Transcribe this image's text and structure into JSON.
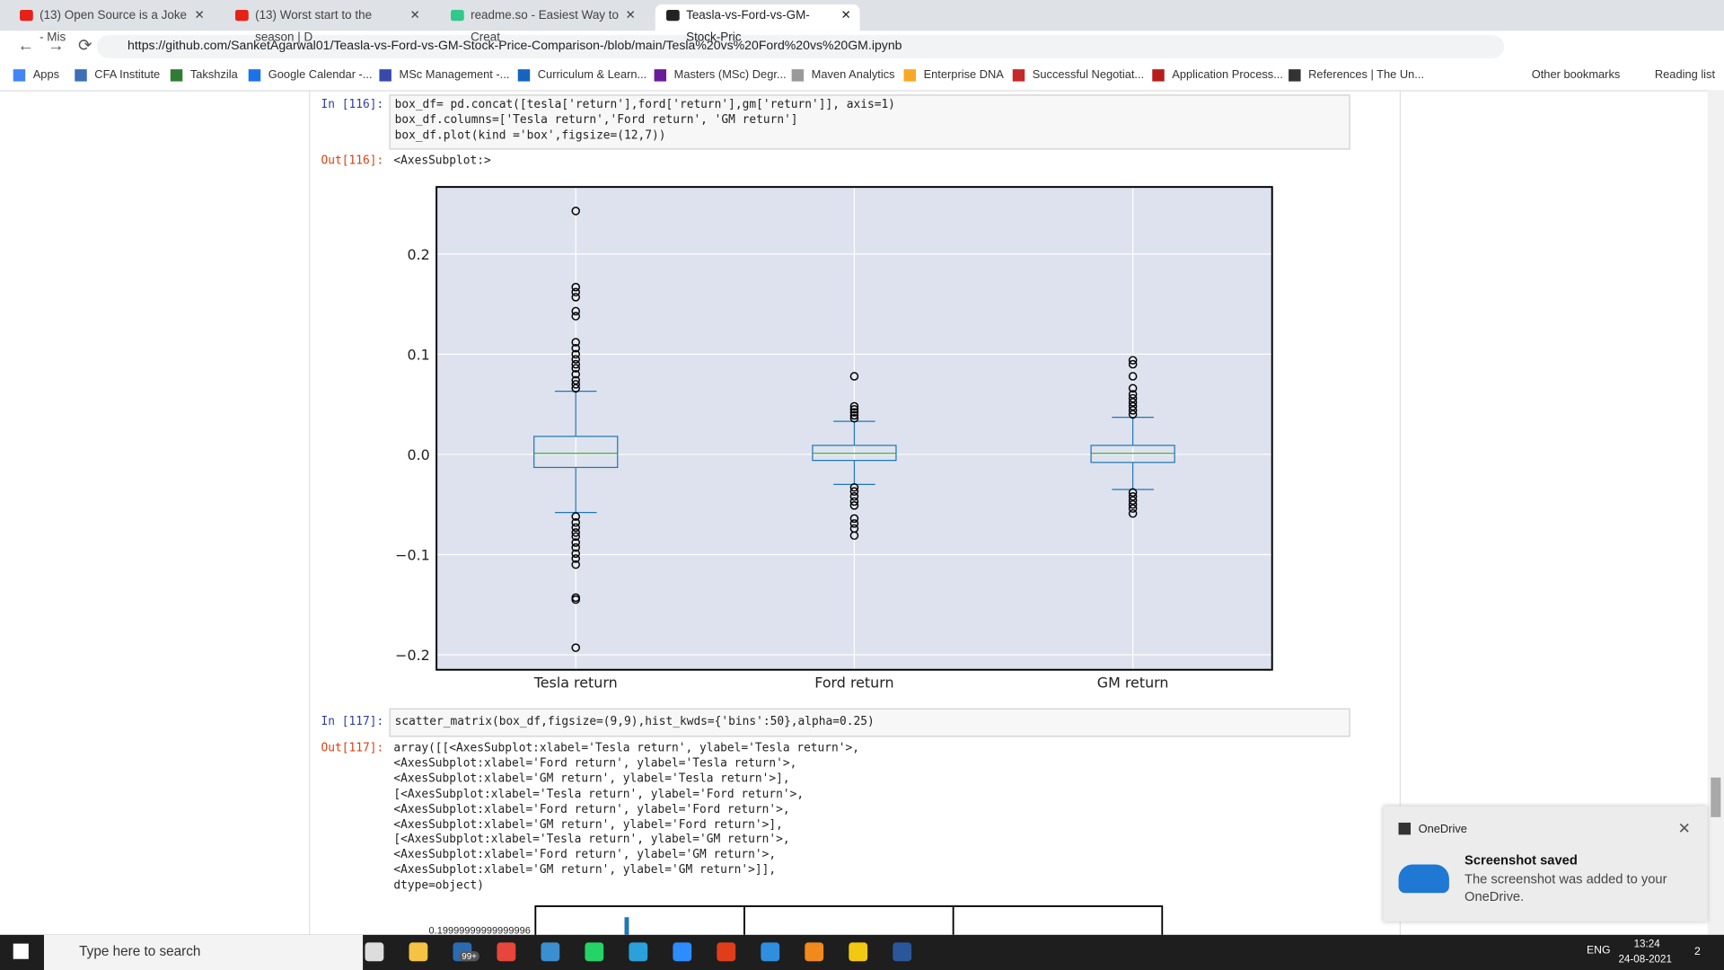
{
  "browser": {
    "tabs": [
      "(13) Open Source is a Joke - Mis",
      "(13) Worst start to the season | D",
      "readme.so - Easiest Way to Creat",
      "Teasla-vs-Ford-vs-GM-Stock-Pric"
    ],
    "url": "https://github.com/SanketAgarwal01/Teasla-vs-Ford-vs-GM-Stock-Price-Comparison-/blob/main/Tesla%20vs%20Ford%20vs%20GM.ipynb",
    "bookmarks": [
      "Apps",
      "CFA Institute",
      "Takshzila",
      "Google Calendar -...",
      "MSc Management -...",
      "Curriculum & Learn...",
      "Masters (MSc) Degr...",
      "Maven Analytics",
      "Enterprise DNA",
      "Successful Negotiat...",
      "Application Process...",
      "References | The Un..."
    ],
    "other_bookmarks": "Other bookmarks",
    "reading_list": "Reading list"
  },
  "notebook": {
    "cells": [
      {
        "prompt": "In [116]:",
        "code": [
          "box_df= pd.concat([tesla['return'],ford['return'],gm['return']], axis=1)",
          "box_df.columns=['Tesla return','Ford return', 'GM return']",
          "box_df.plot(kind ='box',figsize=(12,7))"
        ]
      },
      {
        "prompt": "In [117]:",
        "code": [
          "scatter_matrix(box_df,figsize=(9,9),hist_kwds={'bins':50},alpha=0.25)"
        ]
      }
    ],
    "outputs": [
      {
        "prompt": "Out[116]:",
        "text": [
          "<AxesSubplot:>"
        ]
      },
      {
        "prompt": "Out[117]:",
        "text": [
          "array([[<AxesSubplot:xlabel='Tesla return', ylabel='Tesla return'>,",
          "        <AxesSubplot:xlabel='Ford return', ylabel='Tesla return'>,",
          "        <AxesSubplot:xlabel='GM return', ylabel='Tesla return'>],",
          "       [<AxesSubplot:xlabel='Tesla return', ylabel='Ford return'>,",
          "        <AxesSubplot:xlabel='Ford return', ylabel='Ford return'>,",
          "        <AxesSubplot:xlabel='GM return', ylabel='Ford return'>],",
          "       [<AxesSubplot:xlabel='Tesla return', ylabel='GM return'>,",
          "        <AxesSubplot:xlabel='Ford return', ylabel='GM return'>,",
          "        <AxesSubplot:xlabel='GM return', ylabel='GM return'>]],",
          "      dtype=object)"
        ]
      }
    ],
    "partial_tick": "0.19999999999999996"
  },
  "chart_data": {
    "type": "box",
    "categories": [
      "Tesla return",
      "Ford return",
      "GM return"
    ],
    "boxes": [
      {
        "whislo": -0.058,
        "q1": -0.013,
        "median": 0.001,
        "q3": 0.018,
        "whishi": 0.063,
        "fliers": [
          0.243,
          0.167,
          0.162,
          0.157,
          0.143,
          0.138,
          0.112,
          0.106,
          0.1,
          0.095,
          0.09,
          0.086,
          0.08,
          0.074,
          0.07,
          0.066,
          -0.062,
          -0.068,
          -0.073,
          -0.078,
          -0.082,
          -0.088,
          -0.093,
          -0.099,
          -0.104,
          -0.11,
          -0.143,
          -0.145,
          -0.193
        ]
      },
      {
        "whislo": -0.03,
        "q1": -0.006,
        "median": 0.001,
        "q3": 0.009,
        "whishi": 0.033,
        "fliers": [
          0.078,
          0.048,
          0.045,
          0.042,
          0.039,
          0.036,
          -0.033,
          -0.037,
          -0.042,
          -0.047,
          -0.051,
          -0.064,
          -0.069,
          -0.074,
          -0.081
        ]
      },
      {
        "whislo": -0.035,
        "q1": -0.008,
        "median": 0.001,
        "q3": 0.009,
        "whishi": 0.037,
        "fliers": [
          0.094,
          0.09,
          0.078,
          0.066,
          0.06,
          0.056,
          0.052,
          0.048,
          0.044,
          0.04,
          -0.038,
          -0.042,
          -0.046,
          -0.05,
          -0.054,
          -0.059
        ]
      }
    ],
    "ylim": [
      -0.215,
      0.267
    ],
    "yticks": [
      {
        "value": -0.2,
        "label": "−0.2"
      },
      {
        "value": -0.1,
        "label": "−0.1"
      },
      {
        "value": 0,
        "label": "0.0"
      },
      {
        "value": 0.1,
        "label": "0.1"
      },
      {
        "value": 0.2,
        "label": "0.2"
      }
    ],
    "grid": true,
    "box_color": "#1f77b4",
    "median_color": "#2ca02c",
    "flier_color": "#000000",
    "plot_background": "#dde2ee"
  },
  "toast": {
    "app": "OneDrive",
    "title": "Screenshot saved",
    "message": [
      "The screenshot was added to your",
      "OneDrive."
    ]
  },
  "taskbar": {
    "search": "Type here to search",
    "badge": "99+",
    "language": "ENG",
    "time": "13:24",
    "date": "24-08-2021",
    "notifications": "2"
  }
}
